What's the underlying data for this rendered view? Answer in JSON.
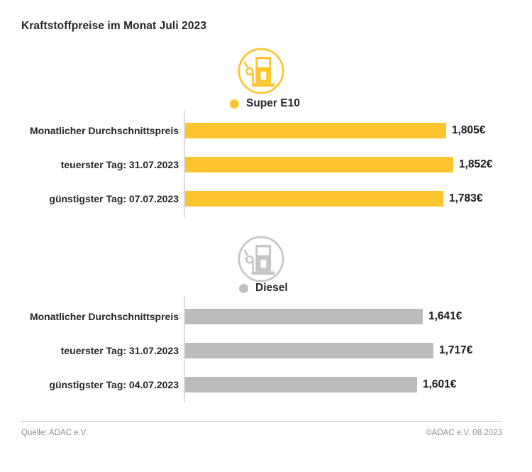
{
  "title": "Kraftstoffpreise im Monat Juli 2023",
  "colors": {
    "super_yellow": "#FCC52F",
    "diesel_gray": "#BCBCBC",
    "axis_gray": "#DCDCDC",
    "text_dark": "#262626",
    "footer_gray": "#8F8F8F"
  },
  "chart_data": [
    {
      "type": "bar",
      "orientation": "horizontal",
      "group": "Super E10",
      "icon": "fuel-pump-icon",
      "color": "#FCC52F",
      "icon_color": "#FCC52F",
      "dot_color": "#FCC52F",
      "categories": [
        "Monatlicher Durchschnittspreis",
        "teuerster Tag: 31.07.2023",
        "günstigster Tag: 07.07.2023"
      ],
      "values": [
        1.805,
        1.852,
        1.783
      ],
      "value_labels": [
        "1,805€",
        "1,852€",
        "1,783€"
      ],
      "xlim": [
        0,
        1.852
      ],
      "grid": false,
      "legend_position": "top-center"
    },
    {
      "type": "bar",
      "orientation": "horizontal",
      "group": "Diesel",
      "icon": "fuel-pump-icon",
      "color": "#BCBCBC",
      "icon_color": "#C6C6C6",
      "dot_color": "#C0C0C0",
      "categories": [
        "Monatlicher Durchschnittspreis",
        "teuerster Tag: 31.07.2023",
        "günstigster Tag: 04.07.2023"
      ],
      "values": [
        1.641,
        1.717,
        1.601
      ],
      "value_labels": [
        "1,641€",
        "1,717€",
        "1,601€"
      ],
      "xlim": [
        0,
        1.852
      ],
      "grid": false,
      "legend_position": "top-center"
    }
  ],
  "footer": {
    "source": "Quelle: ADAC e.V.",
    "copyright": "©ADAC e.V. 08.2023"
  }
}
